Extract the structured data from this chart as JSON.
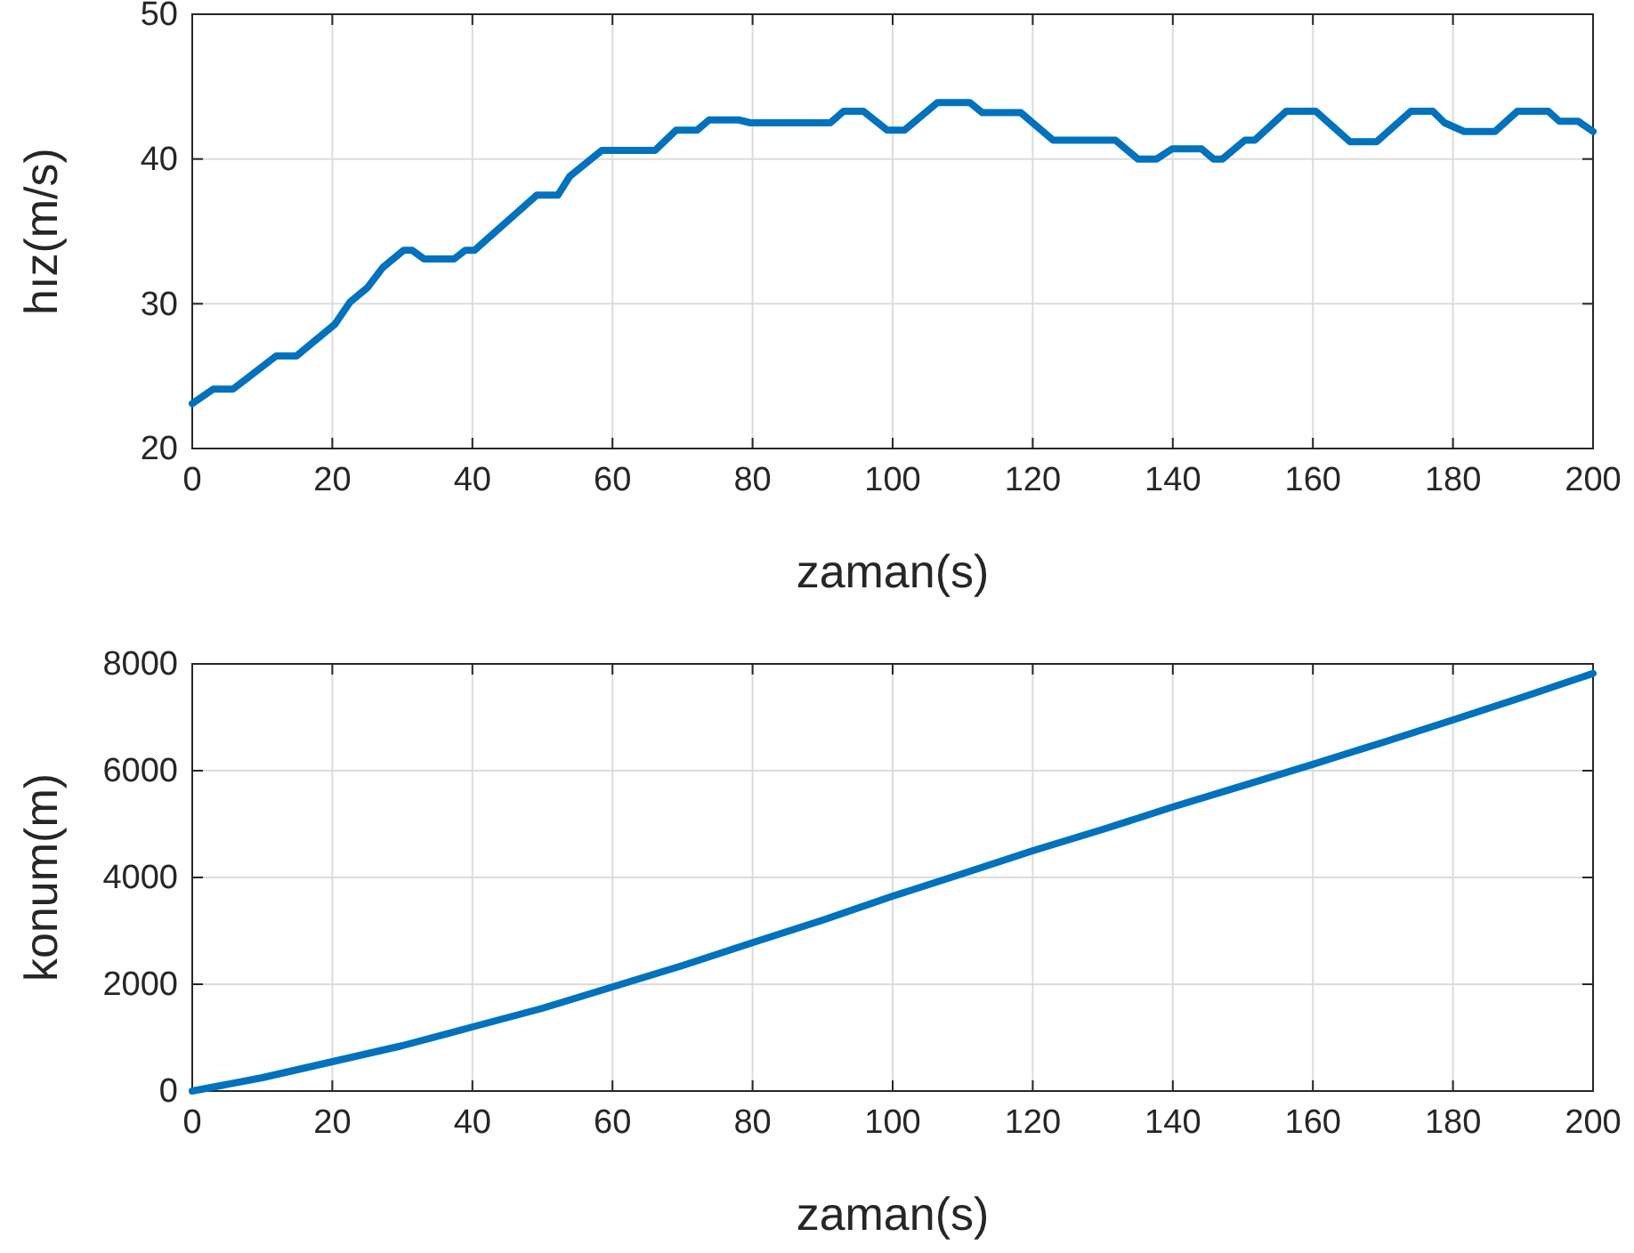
{
  "chart_data": [
    {
      "type": "line",
      "xlabel": "zaman(s)",
      "ylabel": "hız(m/s)",
      "xlim": [
        0,
        200
      ],
      "ylim": [
        20,
        50
      ],
      "xticks": [
        0,
        20,
        40,
        60,
        80,
        100,
        120,
        140,
        160,
        180,
        200
      ],
      "yticks": [
        20,
        30,
        40,
        50
      ],
      "grid": true,
      "line_style": "solid",
      "series": [
        {
          "color": "#0072bd",
          "x": [
            0,
            3,
            5.8,
            12,
            14.9,
            20.4,
            22.5,
            25,
            27.2,
            30.2,
            31.4,
            33.1,
            37.4,
            39,
            40.3,
            49.2,
            52.2,
            53.9,
            58.5,
            66.1,
            69.1,
            72.1,
            73.8,
            78,
            79.7,
            91.1,
            93,
            95.8,
            99.2,
            101.7,
            106.4,
            111,
            112.8,
            118.3,
            122.9,
            131.8,
            135,
            137.7,
            139.9,
            144.1,
            145.8,
            147.1,
            150.3,
            151.7,
            156.2,
            160.4,
            165.3,
            169.1,
            174,
            177.1,
            178.8,
            181.6,
            186,
            189.2,
            193.6,
            195.2,
            197.9,
            200
          ],
          "values": [
            23.1,
            24.1,
            24.1,
            26.4,
            26.4,
            28.6,
            30.1,
            31.1,
            32.5,
            33.7,
            33.7,
            33.1,
            33.1,
            33.7,
            33.7,
            37.5,
            37.5,
            38.8,
            40.6,
            40.6,
            42,
            42,
            42.7,
            42.7,
            42.5,
            42.5,
            43.3,
            43.3,
            42,
            42,
            43.9,
            43.9,
            43.2,
            43.2,
            41.3,
            41.3,
            40,
            40,
            40.7,
            40.7,
            40,
            40,
            41.3,
            41.3,
            43.3,
            43.3,
            41.2,
            41.2,
            43.3,
            43.3,
            42.5,
            41.9,
            41.9,
            43.3,
            43.3,
            42.6,
            42.6,
            41.9
          ]
        }
      ]
    },
    {
      "type": "line",
      "xlabel": "zaman(s)",
      "ylabel": "konum(m)",
      "xlim": [
        0,
        200
      ],
      "ylim": [
        0,
        8000
      ],
      "xticks": [
        0,
        20,
        40,
        60,
        80,
        100,
        120,
        140,
        160,
        180,
        200
      ],
      "yticks": [
        0,
        2000,
        4000,
        6000,
        8000
      ],
      "grid": true,
      "line_style": "solid",
      "series": [
        {
          "color": "#0072bd",
          "x": [
            0,
            10,
            20,
            30,
            40,
            50,
            60,
            70,
            80,
            90,
            100,
            110,
            120,
            130,
            140,
            150,
            160,
            170,
            180,
            190,
            200
          ],
          "values": [
            0,
            250,
            550,
            850,
            1200,
            1550,
            1950,
            2350,
            2780,
            3200,
            3650,
            4070,
            4500,
            4900,
            5320,
            5720,
            6120,
            6530,
            6950,
            7380,
            7820
          ]
        }
      ]
    }
  ]
}
